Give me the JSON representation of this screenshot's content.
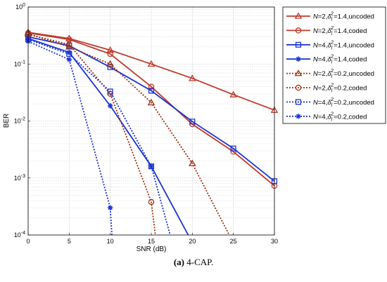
{
  "chart_data": {
    "type": "line",
    "title": "",
    "xlabel": "SNR (dB)",
    "ylabel": "BER",
    "xlim": [
      0,
      30
    ],
    "ylim": [
      0.0001,
      1
    ],
    "yscale": "log",
    "grid": true,
    "legend_position": "top-right",
    "x_ticks": [
      0,
      5,
      10,
      15,
      20,
      25,
      30
    ],
    "y_ticks": [
      {
        "value": 1,
        "label_base": "10",
        "label_exp": "0"
      },
      {
        "value": 0.1,
        "label_base": "10",
        "label_exp": "-1"
      },
      {
        "value": 0.01,
        "label_base": "10",
        "label_exp": "-2"
      },
      {
        "value": 0.001,
        "label_base": "10",
        "label_exp": "-3"
      },
      {
        "value": 0.0001,
        "label_base": "10",
        "label_exp": "-4"
      }
    ],
    "series": [
      {
        "name": "N=2,δl²=1.4,uncoded",
        "N": "2",
        "delta": "1.4",
        "mode": "uncoded",
        "color": "#c0392b",
        "dash": "solid",
        "marker": "triangle",
        "x": [
          0,
          5,
          10,
          15,
          20,
          25,
          30
        ],
        "y": [
          0.36,
          0.28,
          0.175,
          0.1,
          0.056,
          0.029,
          0.0155
        ]
      },
      {
        "name": "N=2,δl²=1.4,coded",
        "N": "2",
        "delta": "1.4",
        "mode": "coded",
        "color": "#c0392b",
        "dash": "solid",
        "marker": "circle",
        "x": [
          0,
          5,
          10,
          15,
          20,
          25,
          30
        ],
        "y": [
          0.35,
          0.27,
          0.15,
          0.04,
          0.0088,
          0.0029,
          0.00073
        ]
      },
      {
        "name": "N=4,δl²=1.4,uncoded",
        "N": "4",
        "delta": "1.4",
        "mode": "uncoded",
        "color": "#1a33d6",
        "dash": "solid",
        "marker": "square",
        "x": [
          0,
          5,
          10,
          15,
          20,
          25,
          30
        ],
        "y": [
          0.3,
          0.21,
          0.088,
          0.034,
          0.0098,
          0.0033,
          0.00088
        ]
      },
      {
        "name": "N=4,δl²=1.4,coded",
        "N": "4",
        "delta": "1.4",
        "mode": "coded",
        "color": "#1a33d6",
        "dash": "solid",
        "marker": "asterisk",
        "x": [
          0,
          5,
          10,
          15,
          19.5
        ],
        "y": [
          0.28,
          0.16,
          0.0185,
          0.0016,
          0.0001
        ]
      },
      {
        "name": "N=2,δl²=0.2,uncoded",
        "N": "2",
        "delta": "0.2",
        "mode": "uncoded",
        "color": "#9c3010",
        "dash": "dotted",
        "marker": "triangle",
        "x": [
          0,
          5,
          10,
          15,
          20,
          24.5
        ],
        "y": [
          0.34,
          0.2,
          0.1,
          0.021,
          0.0018,
          0.0001
        ]
      },
      {
        "name": "N=2,δl²=0.2,coded",
        "N": "2",
        "delta": "0.2",
        "mode": "coded",
        "color": "#9c3010",
        "dash": "dotted",
        "marker": "circle",
        "x": [
          0,
          5,
          10,
          15,
          15.5
        ],
        "y": [
          0.33,
          0.22,
          0.03,
          0.00038,
          0.0001
        ]
      },
      {
        "name": "N=4,δl²=0.2,uncoded",
        "N": "4",
        "delta": "0.2",
        "mode": "uncoded",
        "color": "#1a33d6",
        "dash": "dotted",
        "marker": "square",
        "x": [
          0,
          5,
          10,
          15,
          17.3
        ],
        "y": [
          0.27,
          0.15,
          0.033,
          0.0016,
          0.0001
        ]
      },
      {
        "name": "N=4,δl²=0.2,coded",
        "N": "4",
        "delta": "0.2",
        "mode": "coded",
        "color": "#1a33d6",
        "dash": "dotted",
        "marker": "asterisk",
        "x": [
          0,
          5,
          10,
          10.2
        ],
        "y": [
          0.25,
          0.12,
          0.0003,
          0.0001
        ]
      }
    ]
  },
  "caption": {
    "label": "(a)",
    "text": "4-CAP."
  }
}
